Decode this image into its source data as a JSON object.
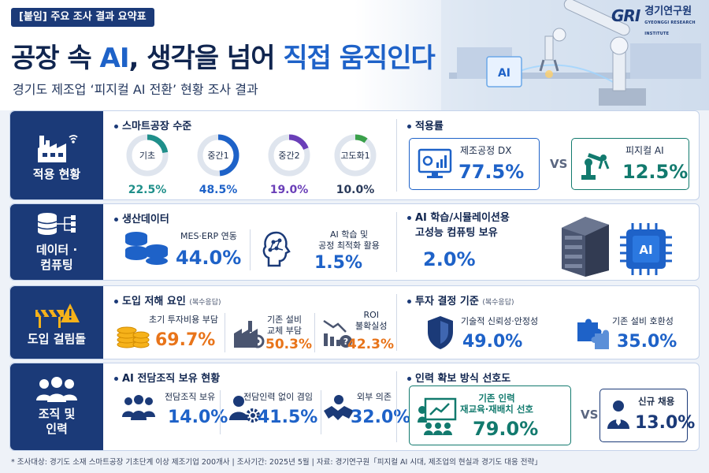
{
  "header": {
    "tag": "[붙임] 주요 조사 결과 요약표",
    "title_a": "공장 속 ",
    "title_b": "AI",
    "title_c": ", 생각을 넘어 ",
    "title_d": "직접 움직인다",
    "subtitle": "경기도 제조업 ‘피지컬 AI 전환’ 현황 조사 결과",
    "logo_mark": "GRI",
    "logo_name": "경기연구원",
    "logo_sub": "GYEONGGI RESEARCH INSTITUTE",
    "hero_ai": "AI"
  },
  "row1": {
    "label": "적용 현황",
    "left_title": "스마트공장 수준",
    "levels": [
      {
        "name": "기초",
        "value": "22.5%",
        "pct": 22.5,
        "color": "#1f8f8a"
      },
      {
        "name": "중간1",
        "value": "48.5%",
        "pct": 48.5,
        "color": "#1e62c8"
      },
      {
        "name": "중간2",
        "value": "19.0%",
        "pct": 19.0,
        "color": "#6a3fb8"
      },
      {
        "name": "고도화1",
        "value": "10.0%",
        "pct": 10.0,
        "color": "#3aa04a"
      }
    ],
    "right_title": "적용률",
    "dx_label": "제조공정 DX",
    "dx_value": "77.5%",
    "vs": "VS",
    "pai_label": "피지컬 AI",
    "pai_value": "12.5%",
    "colors": {
      "blue": "#1e62c8",
      "teal": "#127a6e"
    }
  },
  "row2": {
    "label": "데이터 ·\n컴퓨팅",
    "left_title": "생산데이터",
    "mes_label": "MES·ERP 연동",
    "mes_value": "44.0%",
    "ai_label": "AI 학습 및\n공정 최적화 활용",
    "ai_value": "1.5%",
    "right_title_1": "AI 학습/시뮬레이션용",
    "right_title_2": "고성능 컴퓨팅 보유",
    "hpc_value": "2.0%",
    "chip_text": "AI"
  },
  "row3": {
    "label": "도입 걸림돌",
    "left_title": "도입 저해 요인",
    "left_note": "(복수응답)",
    "barriers": [
      {
        "label": "초기 투자비용 부담",
        "value": "69.7%"
      },
      {
        "label": "기존 설비\n교체 부담",
        "value": "50.3%"
      },
      {
        "label": "ROI\n불확실성",
        "value": "42.3%"
      }
    ],
    "right_title": "투자 결정 기준",
    "right_note": "(복수응답)",
    "criteria": [
      {
        "label": "기술적 신뢰성·안정성",
        "value": "49.0%"
      },
      {
        "label": "기존 설비 호환성",
        "value": "35.0%"
      }
    ],
    "colors": {
      "orange": "#e8741a"
    }
  },
  "row4": {
    "label": "조직 및\n인력",
    "left_title": "AI 전담조직 보유 현황",
    "org": [
      {
        "label": "전담조직 보유",
        "value": "14.0%"
      },
      {
        "label": "전담인력 없이 겸임",
        "value": "41.5%"
      },
      {
        "label": "외부 의존",
        "value": "32.0%"
      }
    ],
    "right_title": "인력 확보 방식 선호도",
    "retrain_label": "기존 인력\n재교육·재배치 선호",
    "retrain_value": "79.0%",
    "vs": "VS",
    "hire_label": "신규 채용",
    "hire_value": "13.0%"
  },
  "footer": "* 조사대상: 경기도 소재 스마트공장 기초단계 이상 제조기업 200개사   |   조사기간: 2025년 5월   |   자료: 경기연구원「피지컬 AI 시대, 제조업의 현실과 경기도 대응 전략」"
}
